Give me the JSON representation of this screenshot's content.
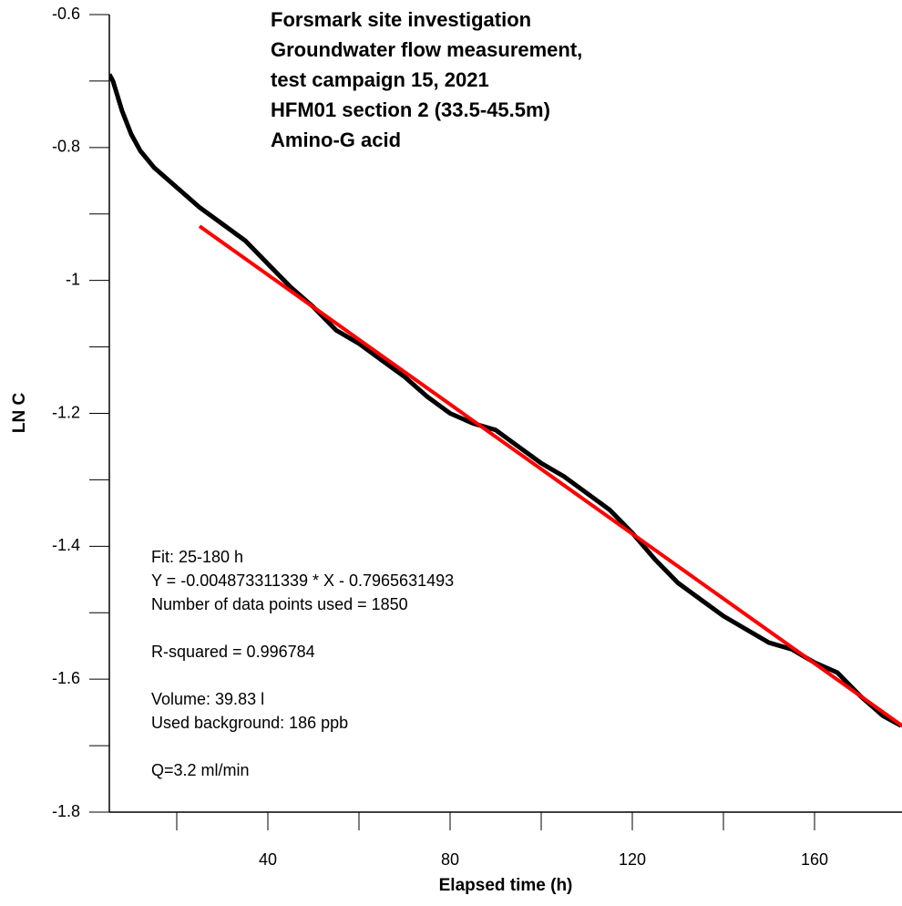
{
  "chart_data": {
    "type": "line",
    "title_lines": [
      "Forsmark site investigation",
      "Groundwater flow measurement,",
      "test campaign 15, 2021",
      "HFM01 section 2 (33.5-45.5m)",
      "Amino-G acid"
    ],
    "xlabel": "Elapsed time (h)",
    "ylabel": "LN C",
    "annotations": [
      [
        "Fit: 25-180 h",
        "Y = -0.004873311339 * X - 0.7965631493",
        "Number of data points used = 1850"
      ],
      [
        "R-squared = 0.996784"
      ],
      [
        "Volume: 39.83 l",
        "Used background: 186 ppb"
      ],
      [
        "Q=3.2 ml/min"
      ]
    ],
    "xlim": [
      5.2,
      179.2
    ],
    "ylim": [
      -1.8,
      -0.6
    ],
    "xticks": [
      40,
      80,
      120,
      160
    ],
    "xminor_ticks": [
      20,
      60,
      100,
      140
    ],
    "yticks": [
      -0.6,
      -0.8,
      -1,
      -1.2,
      -1.4,
      -1.6,
      -1.8
    ],
    "yminor_ticks": [
      -0.7,
      -0.9,
      -1.1,
      -1.3,
      -1.5,
      -1.7
    ],
    "series": [
      {
        "color": "#000000",
        "x": [
          5.2,
          6,
          8,
          10,
          12,
          15,
          20,
          25,
          30,
          35,
          40,
          45,
          50,
          55,
          60,
          65,
          70,
          75,
          80,
          85,
          90,
          95,
          100,
          105,
          110,
          115,
          120,
          125,
          130,
          135,
          140,
          145,
          150,
          155,
          160,
          165,
          170,
          175,
          179
        ],
        "values": [
          -0.69,
          -0.7,
          -0.745,
          -0.78,
          -0.805,
          -0.83,
          -0.86,
          -0.89,
          -0.915,
          -0.94,
          -0.975,
          -1.01,
          -1.04,
          -1.075,
          -1.095,
          -1.12,
          -1.145,
          -1.175,
          -1.2,
          -1.215,
          -1.225,
          -1.25,
          -1.275,
          -1.295,
          -1.32,
          -1.345,
          -1.38,
          -1.42,
          -1.455,
          -1.48,
          -1.505,
          -1.525,
          -1.545,
          -1.555,
          -1.575,
          -1.59,
          -1.625,
          -1.655,
          -1.67
        ]
      },
      {
        "color": "#ff0000",
        "x": [
          25,
          180
        ],
        "values": [
          -0.9184,
          -1.6737
        ]
      }
    ]
  }
}
